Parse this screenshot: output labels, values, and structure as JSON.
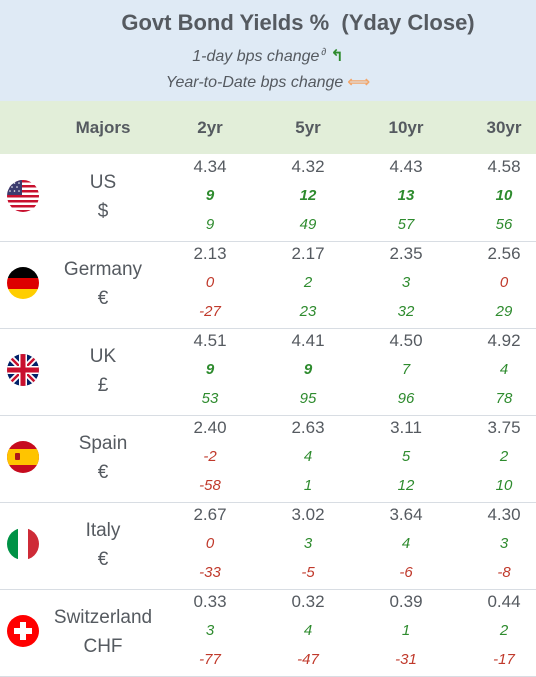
{
  "header": {
    "title": "Govt Bond Yields %  (Yday Close)",
    "subtitle_1day": "1-day bps change",
    "subtitle_1day_mark": "∂",
    "subtitle_ytd": "Year-to-Date bps change",
    "arrow_green_icon": "curved-up-arrow-icon",
    "arrow_orange_icon": "left-right-arrow-icon"
  },
  "columns": {
    "majors": "Majors",
    "y2": "2yr",
    "y5": "5yr",
    "y10": "10yr",
    "y30": "30yr"
  },
  "colors": {
    "positive": "#2e8b2e",
    "negative": "#c0392b",
    "header_bg": "#dfeaf5",
    "colhead_bg": "#e2eed9"
  },
  "rows": [
    {
      "country": "US",
      "currency": "$",
      "flag": "us-flag-icon",
      "yield": [
        "4.34",
        "4.32",
        "4.43",
        "4.58"
      ],
      "d1": [
        "9",
        "12",
        "13",
        "10"
      ],
      "d1_bold": [
        true,
        true,
        true,
        true
      ],
      "ytd": [
        "9",
        "49",
        "57",
        "56"
      ]
    },
    {
      "country": "Germany",
      "currency": "€",
      "flag": "germany-flag-icon",
      "yield": [
        "2.13",
        "2.17",
        "2.35",
        "2.56"
      ],
      "d1": [
        "0",
        "2",
        "3",
        "0"
      ],
      "d1_bold": [
        false,
        false,
        false,
        false
      ],
      "ytd": [
        "-27",
        "23",
        "32",
        "29"
      ]
    },
    {
      "country": "UK",
      "currency": "£",
      "flag": "uk-flag-icon",
      "yield": [
        "4.51",
        "4.41",
        "4.50",
        "4.92"
      ],
      "d1": [
        "9",
        "9",
        "7",
        "4"
      ],
      "d1_bold": [
        true,
        true,
        false,
        false
      ],
      "ytd": [
        "53",
        "95",
        "96",
        "78"
      ]
    },
    {
      "country": "Spain",
      "currency": "€",
      "flag": "spain-flag-icon",
      "yield": [
        "2.40",
        "2.63",
        "3.11",
        "3.75"
      ],
      "d1": [
        "-2",
        "4",
        "5",
        "2"
      ],
      "d1_bold": [
        false,
        false,
        false,
        false
      ],
      "ytd": [
        "-58",
        "1",
        "12",
        "10"
      ]
    },
    {
      "country": "Italy",
      "currency": "€",
      "flag": "italy-flag-icon",
      "yield": [
        "2.67",
        "3.02",
        "3.64",
        "4.30"
      ],
      "d1": [
        "0",
        "3",
        "4",
        "3"
      ],
      "d1_bold": [
        false,
        false,
        false,
        false
      ],
      "ytd": [
        "-33",
        "-5",
        "-6",
        "-8"
      ]
    },
    {
      "country": "Switzerland",
      "currency": "CHF",
      "flag": "switzerland-flag-icon",
      "yield": [
        "0.33",
        "0.32",
        "0.39",
        "0.44"
      ],
      "d1": [
        "3",
        "4",
        "1",
        "2"
      ],
      "d1_bold": [
        false,
        false,
        false,
        false
      ],
      "ytd": [
        "-77",
        "-47",
        "-31",
        "-17"
      ]
    }
  ]
}
